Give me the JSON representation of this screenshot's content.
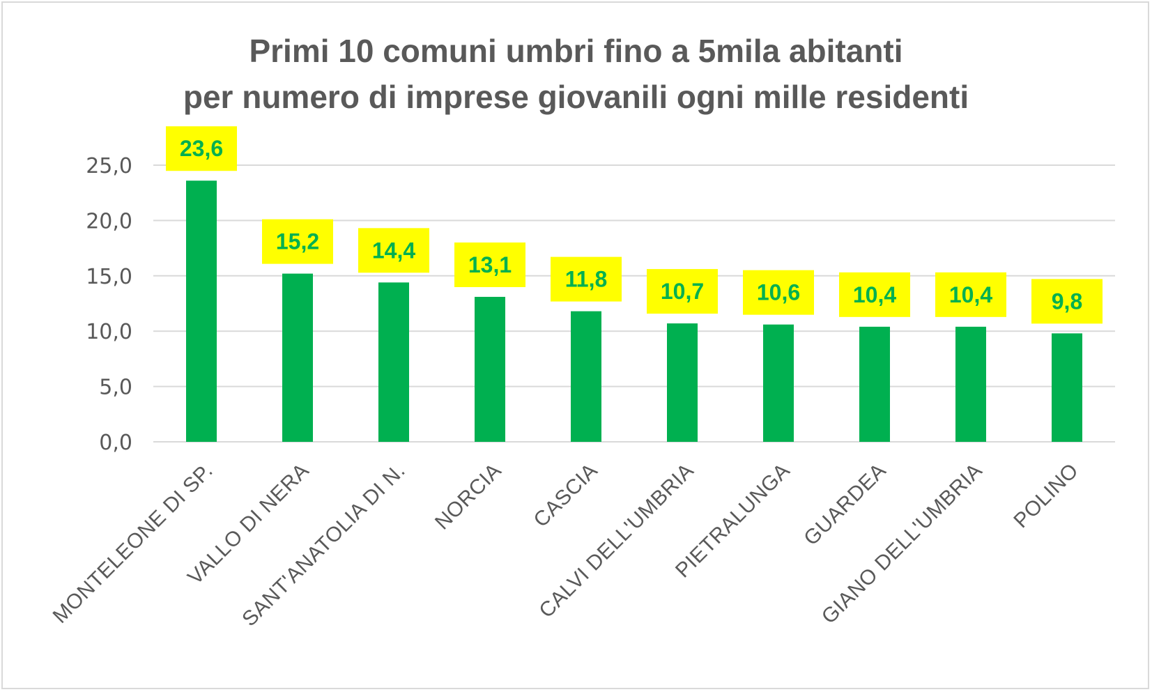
{
  "chart_data": {
    "type": "bar",
    "title": [
      "Primi 10 comuni umbri fino a 5mila abitanti",
      "per numero di imprese giovanili ogni mille residenti"
    ],
    "categories": [
      "MONTELEONE DI SP.",
      "VALLO DI NERA",
      "SANT'ANATOLIA DI N.",
      "NORCIA",
      "CASCIA",
      "CALVI DELL'UMBRIA",
      "PIETRALUNGA",
      "GUARDEA",
      "GIANO DELL'UMBRIA",
      "POLINO"
    ],
    "values": [
      23.6,
      15.2,
      14.4,
      13.1,
      11.8,
      10.7,
      10.6,
      10.4,
      10.4,
      9.8
    ],
    "data_labels": [
      "23,6",
      "15,2",
      "14,4",
      "13,1",
      "11,8",
      "10,7",
      "10,6",
      "10,4",
      "10,4",
      "9,8"
    ],
    "y_ticks": [
      "0,0",
      "5,0",
      "10,0",
      "15,0",
      "20,0",
      "25,0"
    ],
    "y_tick_values": [
      0,
      5,
      10,
      15,
      20,
      25
    ],
    "ylim": [
      0,
      25
    ],
    "xlabel": "",
    "ylabel": "",
    "grid": true,
    "legend": "none",
    "colors": {
      "bar": "#00b050",
      "label_bg": "#ffff00",
      "label_text": "#00b050",
      "grid": "#d9d9d9",
      "text": "#595959"
    }
  }
}
